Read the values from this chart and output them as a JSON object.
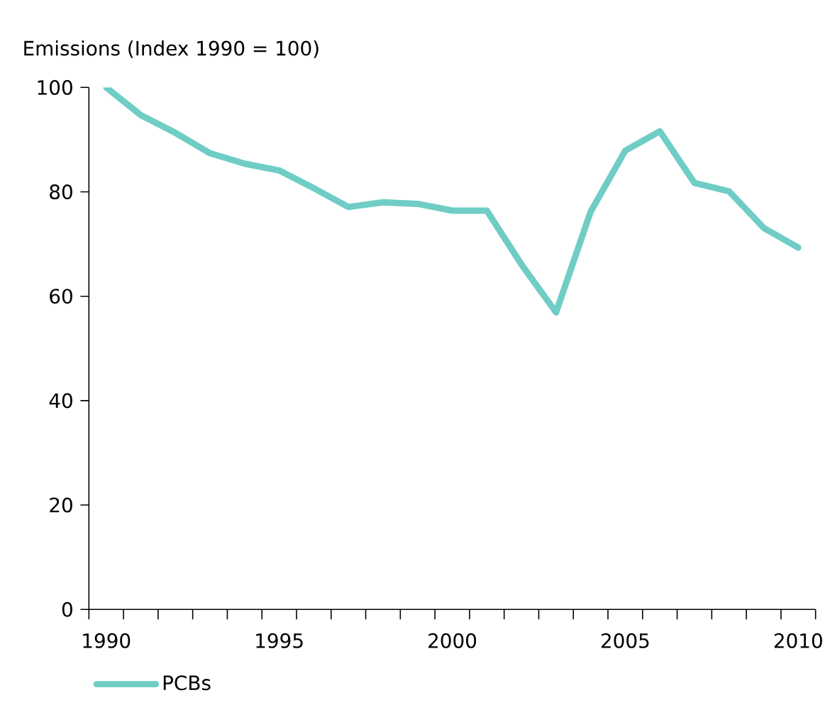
{
  "chart_data": {
    "type": "line",
    "ylabel": "Emissions (Index 1990 = 100)",
    "x": [
      1990,
      1991,
      1992,
      1993,
      1994,
      1995,
      1996,
      1997,
      1998,
      1999,
      2000,
      2001,
      2002,
      2003,
      2004,
      2005,
      2006,
      2007,
      2008,
      2009,
      2010
    ],
    "series": [
      {
        "name": "PCBs",
        "color": "#6fcdc5",
        "values": [
          100,
          94.7,
          91.3,
          87.4,
          85.4,
          84.1,
          80.7,
          77.1,
          78.0,
          77.7,
          76.4,
          76.4,
          66.1,
          56.9,
          76.2,
          87.9,
          91.6,
          81.7,
          80.1,
          73.1,
          69.3
        ]
      }
    ],
    "xlim": [
      1989.5,
      2010.5
    ],
    "xticks": [
      1990,
      1995,
      2000,
      2005,
      2010,
      {
        "value": 1989.5,
        "label": null
      },
      {
        "value": 1990.5,
        "label": null
      },
      {
        "value": 1991.5,
        "label": null
      },
      {
        "value": 1992.5,
        "label": null
      },
      {
        "value": 1993.5,
        "label": null
      },
      {
        "value": 1994.5,
        "label": null
      },
      {
        "value": 1995.5,
        "label": null
      },
      {
        "value": 1996.5,
        "label": null
      },
      {
        "value": 1997.5,
        "label": null
      },
      {
        "value": 1998.5,
        "label": null
      },
      {
        "value": 1999.5,
        "label": null
      },
      {
        "value": 2000.5,
        "label": null
      },
      {
        "value": 2001.5,
        "label": null
      },
      {
        "value": 2002.5,
        "label": null
      },
      {
        "value": 2003.5,
        "label": null
      },
      {
        "value": 2004.5,
        "label": null
      },
      {
        "value": 2005.5,
        "label": null
      },
      {
        "value": 2006.5,
        "label": null
      },
      {
        "value": 2007.5,
        "label": null
      },
      {
        "value": 2008.5,
        "label": null
      },
      {
        "value": 2009.5,
        "label": null
      },
      {
        "value": 2010.5,
        "label": null
      }
    ],
    "ylim": [
      0,
      100
    ],
    "yticks": [
      0,
      20,
      40,
      60,
      80,
      100
    ],
    "legend": "bottom left",
    "marker": "none",
    "line_style": "solid"
  }
}
